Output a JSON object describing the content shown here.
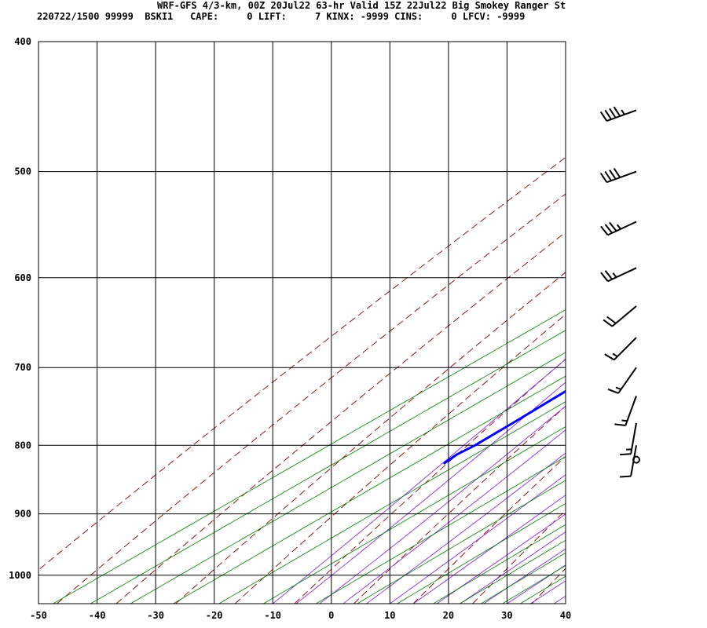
{
  "header": {
    "line1": "WRF-GFS 4/3-km, 00Z 20Jul22 63-hr Valid 15Z 22Jul22 Big Smokey Ranger St",
    "line2": "220722/1500 99999  BSKI1   CAPE:     0 LIFT:     7 KINX: -9999 CINS:     0 LFCV: -9999"
  },
  "colors": {
    "temperature": "#ff0000",
    "dewpoint": "#0000ff",
    "dry_adiabat": "#8b0000",
    "moist_adiabat": "#8a2be2",
    "mixing_ratio": "#008000",
    "grid": "#000000"
  },
  "chart_data": {
    "type": "line",
    "chart_kind": "skew-T log-P sounding",
    "title": "WRF-GFS 4/3-km, 00Z 20Jul22 63-hr Valid 15Z 22Jul22 Big Smokey Ranger St",
    "x_axis": {
      "unit": "°C",
      "ticks": [
        -50,
        -40,
        -30,
        -20,
        -10,
        0,
        10,
        20,
        30,
        40
      ],
      "range": [
        -50,
        40
      ],
      "skewed": true
    },
    "y_axis": {
      "unit": "hPa",
      "ticks": [
        400,
        500,
        600,
        700,
        800,
        900,
        1000
      ],
      "scale": "log",
      "range": [
        400,
        1050
      ],
      "inverted": true
    },
    "grid": true,
    "series": [
      {
        "role": "temperature",
        "color": "#ff0000",
        "points": [
          {
            "p": 450,
            "t": -13.6
          },
          {
            "p": 470,
            "t": -10.2
          },
          {
            "p": 490,
            "t": -8.2
          },
          {
            "p": 510,
            "t": -7.4
          },
          {
            "p": 540,
            "t": -6.0
          },
          {
            "p": 570,
            "t": -4.5
          },
          {
            "p": 600,
            "t": -2.5
          },
          {
            "p": 630,
            "t": -0.3
          },
          {
            "p": 670,
            "t": 2.5
          },
          {
            "p": 700,
            "t": 4.5
          },
          {
            "p": 740,
            "t": 6.5
          },
          {
            "p": 780,
            "t": 8.5
          },
          {
            "p": 800,
            "t": 9.1
          },
          {
            "p": 812,
            "t": 8.4
          },
          {
            "p": 820,
            "t": 8.2
          }
        ]
      },
      {
        "role": "dewpoint",
        "color": "#0000ff",
        "points": [
          {
            "p": 450,
            "t": -37.0
          },
          {
            "p": 492,
            "t": -35.7
          },
          {
            "p": 520,
            "t": -35.8
          },
          {
            "p": 550,
            "t": -34.1
          },
          {
            "p": 575,
            "t": -30.6
          },
          {
            "p": 600,
            "t": -28.6
          },
          {
            "p": 630,
            "t": -28.2
          },
          {
            "p": 660,
            "t": -27.3
          },
          {
            "p": 690,
            "t": -27.0
          },
          {
            "p": 730,
            "t": -26.4
          },
          {
            "p": 770,
            "t": -25.5
          },
          {
            "p": 800,
            "t": -25.0
          },
          {
            "p": 813,
            "t": -25.2
          },
          {
            "p": 820,
            "t": -24.9
          },
          {
            "p": 825,
            "t": -24.6
          }
        ]
      }
    ],
    "wind_barbs": [
      {
        "p": 450,
        "dir": 250,
        "speed_kt": 45
      },
      {
        "p": 500,
        "dir": 250,
        "speed_kt": 40
      },
      {
        "p": 545,
        "dir": 245,
        "speed_kt": 35
      },
      {
        "p": 590,
        "dir": 245,
        "speed_kt": 25
      },
      {
        "p": 630,
        "dir": 230,
        "speed_kt": 20
      },
      {
        "p": 665,
        "dir": 225,
        "speed_kt": 15
      },
      {
        "p": 700,
        "dir": 215,
        "speed_kt": 15
      },
      {
        "p": 735,
        "dir": 200,
        "speed_kt": 15
      },
      {
        "p": 770,
        "dir": 190,
        "speed_kt": 15
      },
      {
        "p": 800,
        "dir": 190,
        "speed_kt": 10
      },
      {
        "p": 820,
        "dir": 0,
        "speed_kt": 0
      }
    ]
  }
}
